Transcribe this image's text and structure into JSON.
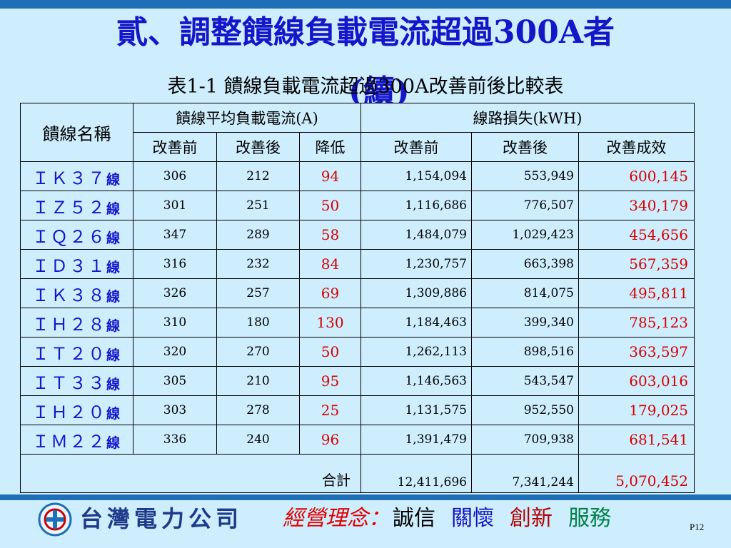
{
  "title": "貳、調整饋線負載電流超過300A者",
  "title_cont": "(續)",
  "subtitle": "表1-1 饋線負載電流超過300A改善前後比較表",
  "table": {
    "col_name": "饋線名稱",
    "group1": "饋線平均負載電流(A)",
    "group2": "線路損失(kWH)",
    "sub_headers": [
      "改善前",
      "改善後",
      "降低",
      "改善前",
      "改善後",
      "改善成效"
    ],
    "suffix": "線",
    "rows": [
      {
        "name": "ＩＫ３７",
        "a_before": "306",
        "a_after": "212",
        "a_diff": "94",
        "l_before": "1,154,094",
        "l_after": "553,949",
        "l_diff": "600,145"
      },
      {
        "name": "ＩＺ５２",
        "a_before": "301",
        "a_after": "251",
        "a_diff": "50",
        "l_before": "1,116,686",
        "l_after": "776,507",
        "l_diff": "340,179"
      },
      {
        "name": "ＩＱ２６",
        "a_before": "347",
        "a_after": "289",
        "a_diff": "58",
        "l_before": "1,484,079",
        "l_after": "1,029,423",
        "l_diff": "454,656"
      },
      {
        "name": "ＩＤ３１",
        "a_before": "316",
        "a_after": "232",
        "a_diff": "84",
        "l_before": "1,230,757",
        "l_after": "663,398",
        "l_diff": "567,359"
      },
      {
        "name": "ＩＫ３８",
        "a_before": "326",
        "a_after": "257",
        "a_diff": "69",
        "l_before": "1,309,886",
        "l_after": "814,075",
        "l_diff": "495,811"
      },
      {
        "name": "ＩＨ２８",
        "a_before": "310",
        "a_after": "180",
        "a_diff": "130",
        "l_before": "1,184,463",
        "l_after": "399,340",
        "l_diff": "785,123"
      },
      {
        "name": "ＩＴ２０",
        "a_before": "320",
        "a_after": "270",
        "a_diff": "50",
        "l_before": "1,262,113",
        "l_after": "898,516",
        "l_diff": "363,597"
      },
      {
        "name": "ＩＴ３３",
        "a_before": "305",
        "a_after": "210",
        "a_diff": "95",
        "l_before": "1,146,563",
        "l_after": "543,547",
        "l_diff": "603,016"
      },
      {
        "name": "ＩＨ２０",
        "a_before": "303",
        "a_after": "278",
        "a_diff": "25",
        "l_before": "1,131,575",
        "l_after": "952,550",
        "l_diff": "179,025"
      },
      {
        "name": "ＩＭ２２",
        "a_before": "336",
        "a_after": "240",
        "a_diff": "96",
        "l_before": "1,391,479",
        "l_after": "709,938",
        "l_diff": "681,541"
      }
    ],
    "total": {
      "label": "合計",
      "l_before": "12,411,696",
      "l_after": "7,341,244",
      "l_diff": "5,070,452"
    }
  },
  "footer": {
    "company": "台灣電力公司",
    "motto_label": "經營理念：",
    "motto": [
      "誠信",
      "關懷",
      "創新",
      "服務"
    ],
    "page": "P12"
  },
  "colors": {
    "background": "#cfeefd",
    "title": "#1515c9",
    "highlight": "#d40000",
    "bar": "#1e6fb5"
  }
}
